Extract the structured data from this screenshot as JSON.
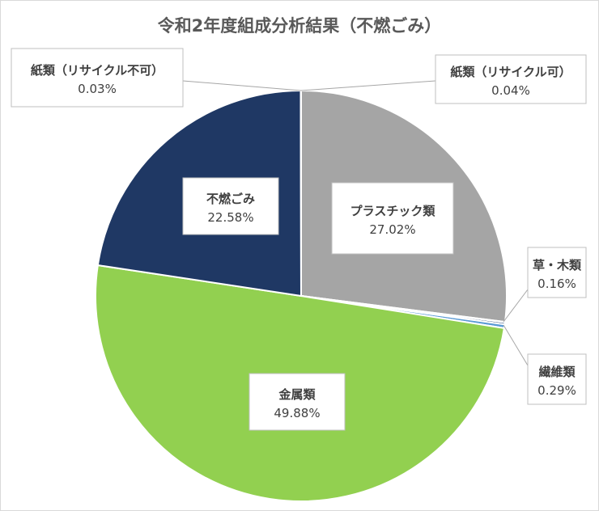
{
  "chart_data": {
    "type": "pie",
    "title": "令和2年度組成分析結果（不燃ごみ）",
    "slices": [
      {
        "label": "プラスチック類",
        "value": 27.02,
        "value_label": "27.02%",
        "color": "#a5a5a5"
      },
      {
        "label": "紙類（リサイクル可）",
        "value": 0.04,
        "value_label": "0.04%",
        "color": "#a5a5a5"
      },
      {
        "label": "草・木類",
        "value": 0.16,
        "value_label": "0.16%",
        "color": "#264478"
      },
      {
        "label": "繊維類",
        "value": 0.29,
        "value_label": "0.29%",
        "color": "#5b9bd5"
      },
      {
        "label": "金属類",
        "value": 49.88,
        "value_label": "49.88%",
        "color": "#92d050"
      },
      {
        "label": "不燃ごみ",
        "value": 22.58,
        "value_label": "22.58%",
        "color": "#1f3864"
      },
      {
        "label": "紙類（リサイクル不可）",
        "value": 0.03,
        "value_label": "0.03%",
        "color": "#1f3864"
      }
    ],
    "legend": "none"
  }
}
